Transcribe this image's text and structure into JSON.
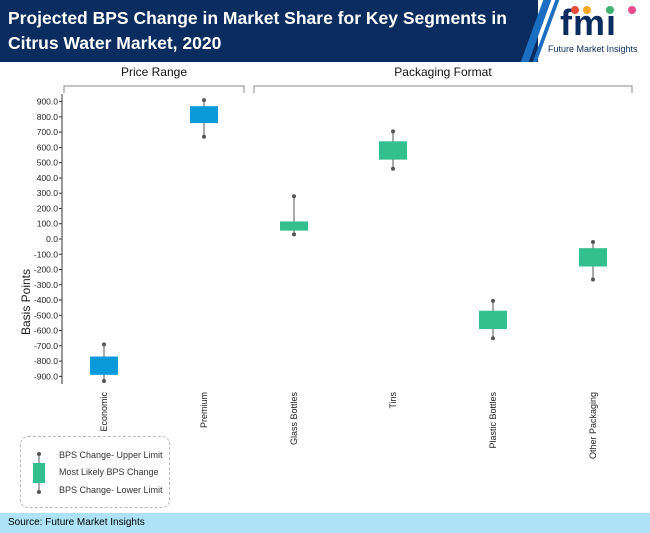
{
  "header": {
    "title": "Projected BPS Change in Market Share for Key Segments in Citrus Water Market, 2020",
    "logo_text": "fmi",
    "logo_subtitle": "Future Market Insights"
  },
  "footer": {
    "source": "Source: Future Market Insights"
  },
  "colors": {
    "header_bg": "#0a2c5e",
    "blue_box": "#0a9ad9",
    "green_box": "#34bf8e",
    "footer_bg": "#aee3f7"
  },
  "chart_data": {
    "type": "boxplot",
    "ylabel": "Basis Points",
    "ylim": [
      -950,
      950
    ],
    "yticks": [
      "-900.0",
      "-800.0",
      "-700.0",
      "-600.0",
      "-500.0",
      "-400.0",
      "-300.0",
      "-200.0",
      "-100.0",
      "0.0",
      "100.0",
      "200.0",
      "300.0",
      "400.0",
      "500.0",
      "600.0",
      "700.0",
      "800.0",
      "900.0"
    ],
    "groups": [
      {
        "label": "Price Range",
        "categories": [
          "Economic",
          "Premium"
        ]
      },
      {
        "label": "Packaging Format",
        "categories": [
          "Glass Bottles",
          "Tins",
          "Plastic Bottles",
          "Other Packaging"
        ]
      }
    ],
    "categories": [
      "Economic",
      "Premium",
      "Glass Bottles",
      "Tins",
      "Plastic Bottles",
      "Other Packaging"
    ],
    "series": [
      {
        "category": "Economic",
        "lower": -930,
        "box_low": -890,
        "box_high": -770,
        "upper": -690,
        "color": "#0a9ad9"
      },
      {
        "category": "Premium",
        "lower": 670,
        "box_low": 760,
        "box_high": 870,
        "upper": 910,
        "color": "#0a9ad9"
      },
      {
        "category": "Glass Bottles",
        "lower": 30,
        "box_low": 55,
        "box_high": 115,
        "upper": 280,
        "color": "#34bf8e"
      },
      {
        "category": "Tins",
        "lower": 460,
        "box_low": 520,
        "box_high": 640,
        "upper": 705,
        "color": "#34bf8e"
      },
      {
        "category": "Plastic Bottles",
        "lower": -650,
        "box_low": -590,
        "box_high": -470,
        "upper": -405,
        "color": "#34bf8e"
      },
      {
        "category": "Other Packaging",
        "lower": -265,
        "box_low": -180,
        "box_high": -60,
        "upper": -20,
        "color": "#34bf8e"
      }
    ],
    "legend": {
      "upper": "BPS Change- Upper Limit",
      "likely": "Most Likely BPS Change",
      "lower": "BPS Change- Lower Limit"
    }
  }
}
